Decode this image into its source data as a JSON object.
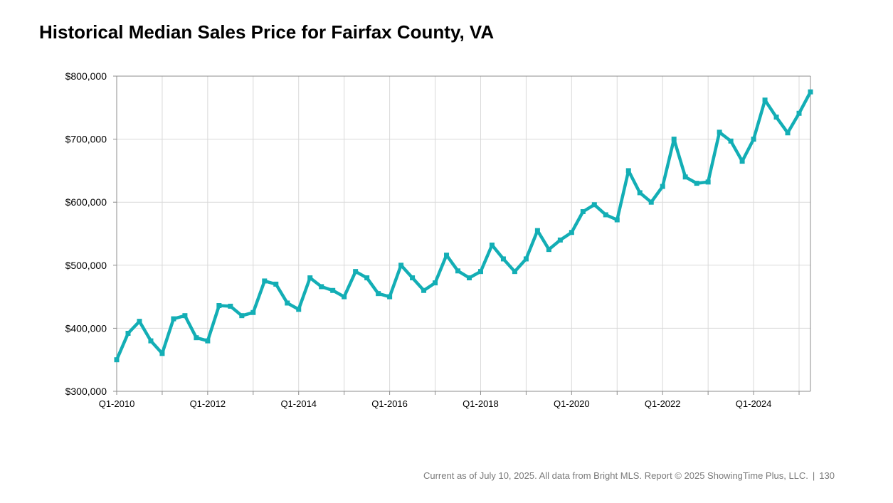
{
  "header": {
    "title": "Historical Median Sales Price for Fairfax County, VA"
  },
  "footer": {
    "note": "Current as of July 10, 2025. All data from Bright MLS. Report © 2025 ShowingTime Plus, LLC.",
    "separator": "|",
    "page_number": "130"
  },
  "colors": {
    "line": "#13aeb5",
    "grid": "#d9d9d9",
    "axis": "#8c8c8c",
    "text": "#000000"
  },
  "chart_data": {
    "type": "line",
    "title": "Historical Median Sales Price for Fairfax County, VA",
    "xlabel": "",
    "ylabel": "",
    "ylim": [
      300000,
      800000
    ],
    "y_ticks": [
      300000,
      400000,
      500000,
      600000,
      700000,
      800000
    ],
    "y_tick_labels": [
      "$300,000",
      "$400,000",
      "$500,000",
      "$600,000",
      "$700,000",
      "$800,000"
    ],
    "x_tick_labels": [
      "Q1-2010",
      "Q1-2012",
      "Q1-2014",
      "Q1-2016",
      "Q1-2018",
      "Q1-2020",
      "Q1-2022",
      "Q1-2024"
    ],
    "x_tick_label_every": 8,
    "grid": true,
    "legend": "none",
    "x": [
      "Q1-2010",
      "Q2-2010",
      "Q3-2010",
      "Q4-2010",
      "Q1-2011",
      "Q2-2011",
      "Q3-2011",
      "Q4-2011",
      "Q1-2012",
      "Q2-2012",
      "Q3-2012",
      "Q4-2012",
      "Q1-2013",
      "Q2-2013",
      "Q3-2013",
      "Q4-2013",
      "Q1-2014",
      "Q2-2014",
      "Q3-2014",
      "Q4-2014",
      "Q1-2015",
      "Q2-2015",
      "Q3-2015",
      "Q4-2015",
      "Q1-2016",
      "Q2-2016",
      "Q3-2016",
      "Q4-2016",
      "Q1-2017",
      "Q2-2017",
      "Q3-2017",
      "Q4-2017",
      "Q1-2018",
      "Q2-2018",
      "Q3-2018",
      "Q4-2018",
      "Q1-2019",
      "Q2-2019",
      "Q3-2019",
      "Q4-2019",
      "Q1-2020",
      "Q2-2020",
      "Q3-2020",
      "Q4-2020",
      "Q1-2021",
      "Q2-2021",
      "Q3-2021",
      "Q4-2021",
      "Q1-2022",
      "Q2-2022",
      "Q3-2022",
      "Q4-2022",
      "Q1-2023",
      "Q2-2023",
      "Q3-2023",
      "Q4-2023",
      "Q1-2024",
      "Q2-2024",
      "Q3-2024",
      "Q4-2024",
      "Q1-2025",
      "Q2-2025"
    ],
    "series": [
      {
        "values": [
          350000,
          392000,
          411000,
          380000,
          360000,
          415000,
          420000,
          385000,
          380000,
          436000,
          435000,
          420000,
          425000,
          475000,
          470000,
          440000,
          430000,
          480000,
          466000,
          460000,
          450000,
          490000,
          480000,
          455000,
          450000,
          500000,
          480000,
          460000,
          472000,
          516000,
          491000,
          480000,
          490000,
          532000,
          510000,
          490000,
          510000,
          555000,
          525000,
          540000,
          552000,
          585000,
          596000,
          580000,
          572000,
          650000,
          615000,
          600000,
          625000,
          700000,
          640000,
          630000,
          632000,
          711000,
          697000,
          665000,
          700000,
          762000,
          735000,
          710000,
          741000,
          775000
        ]
      }
    ]
  }
}
